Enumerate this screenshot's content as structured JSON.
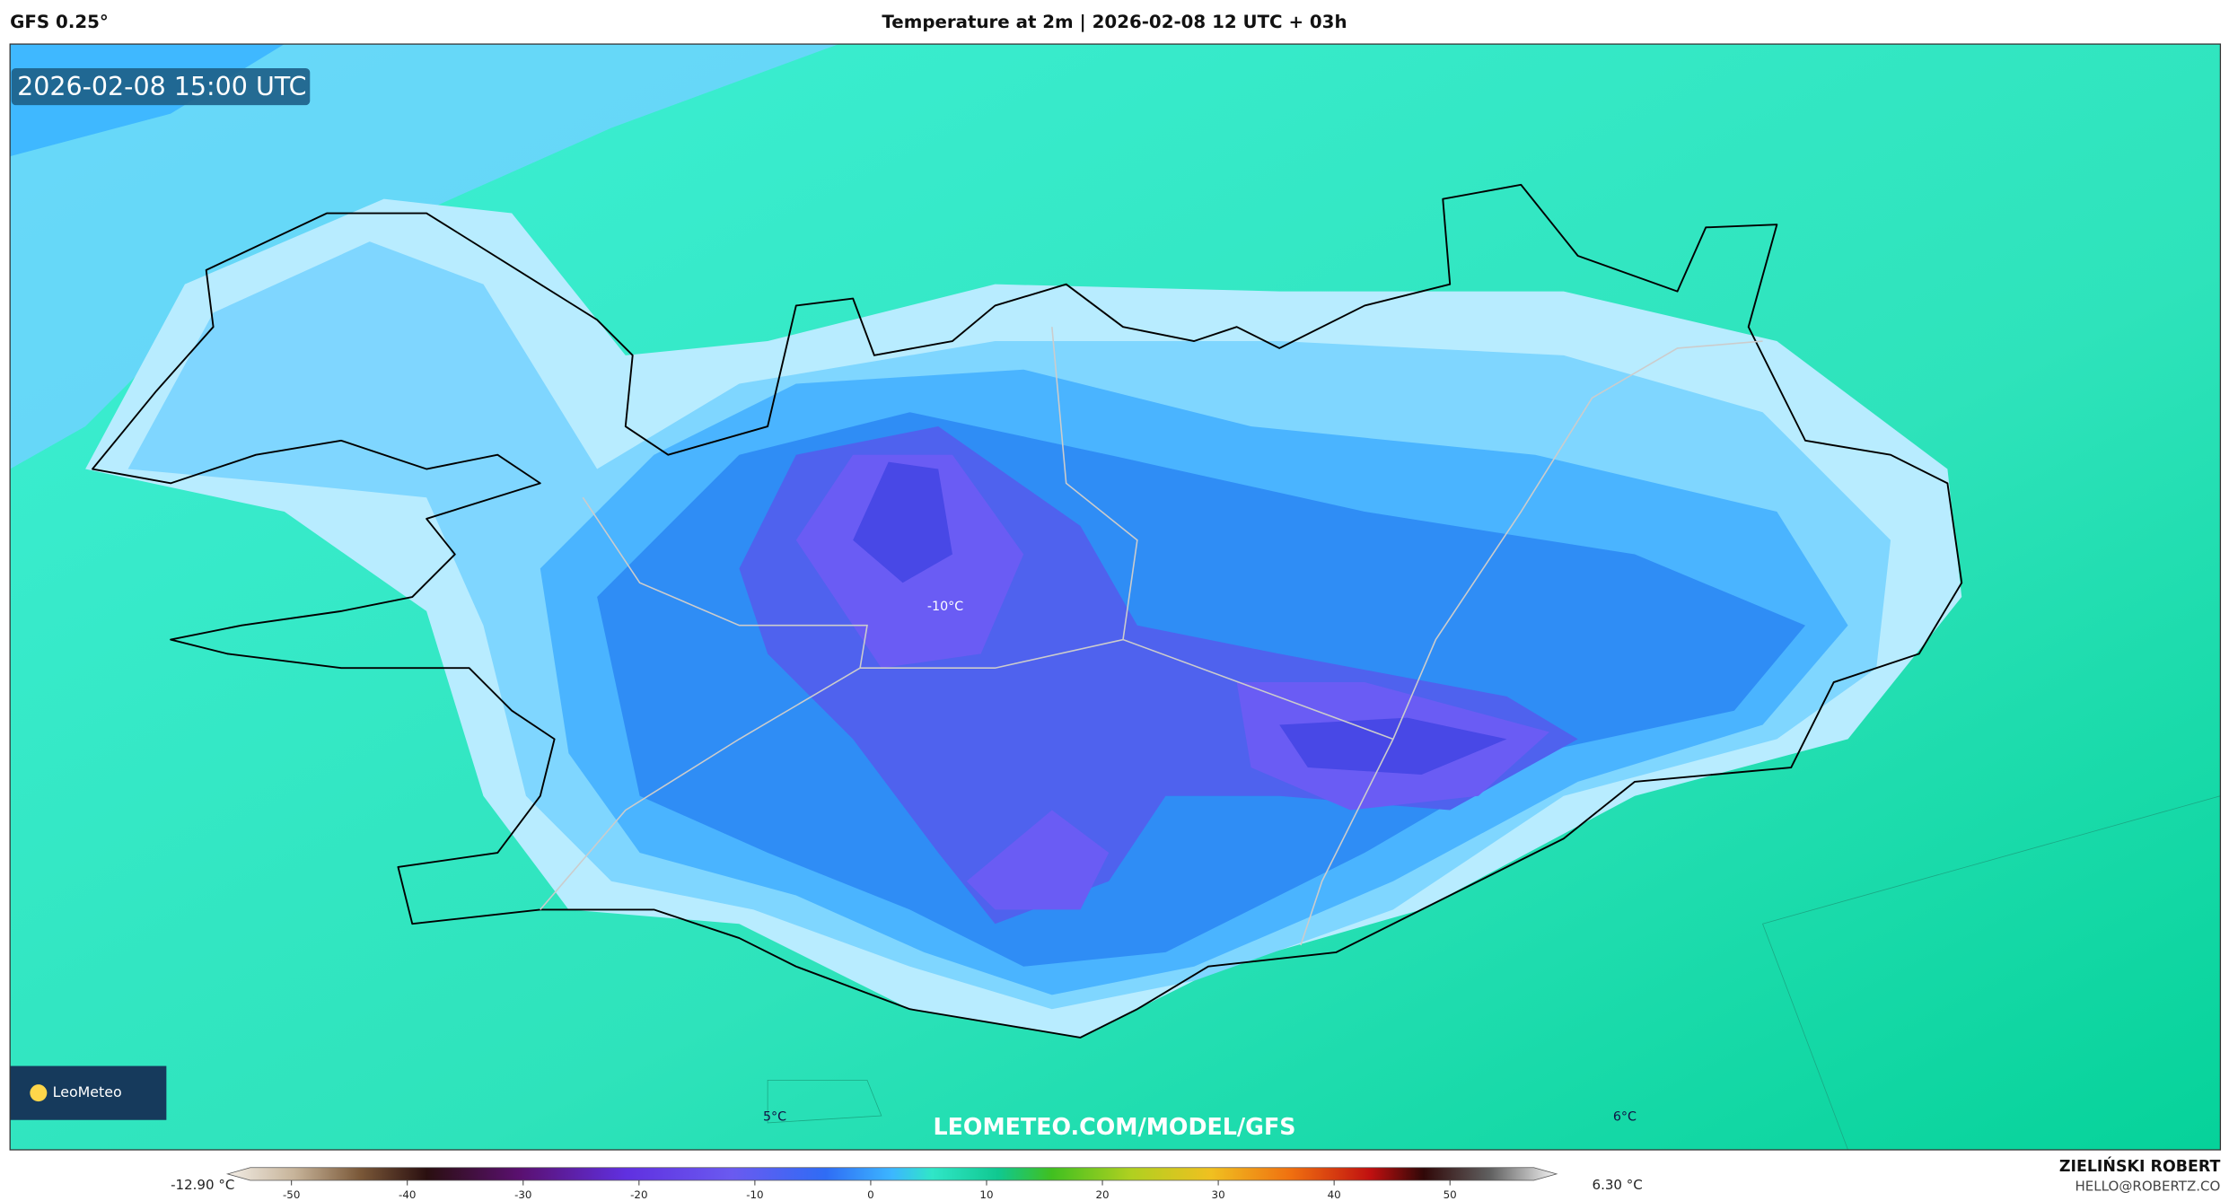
{
  "header": {
    "model": "GFS 0.25°",
    "title": "Temperature at 2m | 2026-02-08 12 UTC + 03h"
  },
  "map": {
    "valid_time": "2026-02-08 15:00 UTC",
    "logo": "LeoMeteo",
    "watermark": "LEOMETEO.COM/MODEL/GFS",
    "contour_labels": [
      "-10°C",
      "5°C",
      "6°C"
    ]
  },
  "colorbar": {
    "min_label": "-12.90 °C",
    "max_label": "6.30 °C",
    "range": [
      -50,
      50
    ],
    "ticks": [
      -50,
      -40,
      -30,
      -20,
      -10,
      0,
      10,
      20,
      30,
      40,
      50
    ]
  },
  "credit": {
    "author": "ZIELIŃSKI ROBERT",
    "email": "HELLO@ROBERTZ.CO"
  }
}
